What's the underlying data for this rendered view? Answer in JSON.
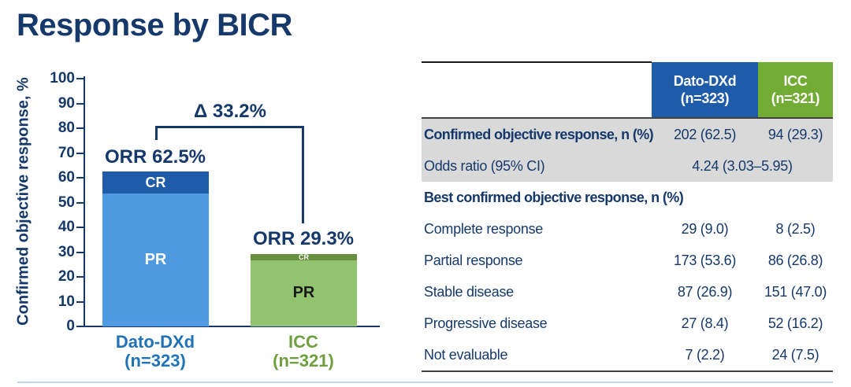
{
  "slide": {
    "title": "Response by BICR"
  },
  "colors": {
    "navy_text": "#16396B",
    "bar_cr_blue": "#1E5BA9",
    "bar_pr_blue": "#4F9BE2",
    "bar_cr_green": "#67903E",
    "bar_pr_green": "#92C46F",
    "header_blue": "#1E5BA9",
    "header_green": "#72AC35",
    "row_gray": "#D9D9D9",
    "dato_label_blue": "#2173B8",
    "icc_label_green": "#6F9F3F",
    "footer_line_blue": "#BDD7EE"
  },
  "chart_data": {
    "type": "bar",
    "stacked": true,
    "title": "",
    "xlabel": "",
    "ylabel": "Confirmed objective response, %",
    "ylim": [
      0,
      100
    ],
    "yticks": [
      0,
      10,
      20,
      30,
      40,
      50,
      60,
      70,
      80,
      90,
      100
    ],
    "grid": false,
    "delta": {
      "label": "Δ 33.2%",
      "value": 33.2
    },
    "groups": [
      {
        "label": "Dato-DXd",
        "n": "(n=323)",
        "orr": 62.5,
        "orr_label": "ORR 62.5%",
        "segments": [
          {
            "name": "PR",
            "value": 53.6,
            "color": "#4F9BE2",
            "text_color": "#FFFFFF"
          },
          {
            "name": "CR",
            "value": 9.0,
            "color": "#1E5BA9",
            "text_color": "#FFFFFF"
          }
        ]
      },
      {
        "label": "ICC",
        "n": "(n=321)",
        "orr": 29.3,
        "orr_label": "ORR 29.3%",
        "segments": [
          {
            "name": "PR",
            "value": 26.8,
            "color": "#92C46F",
            "text_color": "#1A1A1A"
          },
          {
            "name": "CR",
            "value": 2.5,
            "color": "#67903E",
            "text_color": "#FFFFFF"
          }
        ]
      }
    ]
  },
  "table": {
    "columns": [
      {
        "name": "Dato-DXd",
        "n": "(n=323)",
        "color": "#1E5BA9"
      },
      {
        "name": "ICC",
        "n": "(n=321)",
        "color": "#72AC35"
      }
    ],
    "rows": [
      {
        "label": "Confirmed objective response, n (%)",
        "dato": "202 (62.5)",
        "icc": "94 (29.3)"
      },
      {
        "label": "Odds ratio (95% CI)",
        "span": "4.24 (3.03–5.95)"
      },
      {
        "label": "Best confirmed objective response, n (%)",
        "dato": "",
        "icc": ""
      },
      {
        "label": "Complete response",
        "dato": "29 (9.0)",
        "icc": "8 (2.5)"
      },
      {
        "label": "Partial response",
        "dato": "173 (53.6)",
        "icc": "86 (26.8)"
      },
      {
        "label": "Stable disease",
        "dato": "87 (26.9)",
        "icc": "151 (47.0)"
      },
      {
        "label": "Progressive disease",
        "dato": "27 (8.4)",
        "icc": "52 (16.2)"
      },
      {
        "label": "Not evaluable",
        "dato": "7 (2.2)",
        "icc": "24 (7.5)"
      }
    ]
  }
}
